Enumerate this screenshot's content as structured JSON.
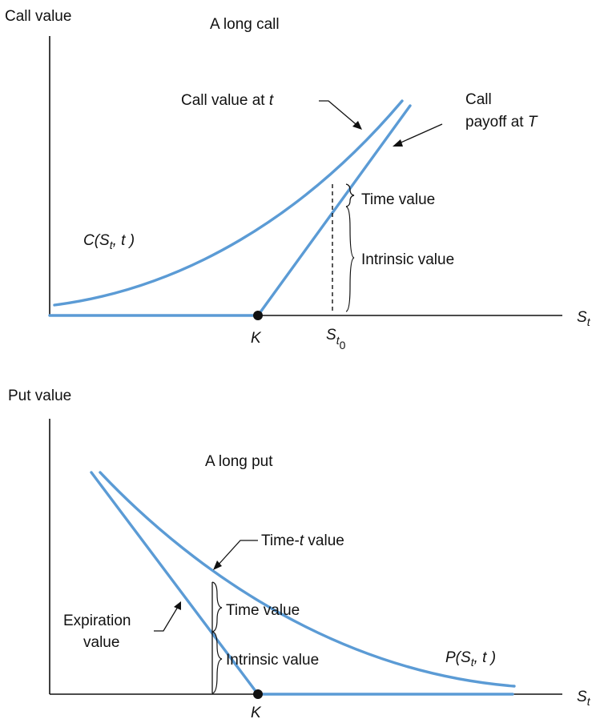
{
  "call_panel": {
    "y_axis_label": "Call value",
    "title": "A long call",
    "x_axis_label": "S",
    "x_axis_sub": "t",
    "strike_label": "K",
    "spot_label": "S",
    "spot_sub": "t",
    "spot_subsub": "0",
    "value_function_label": "C(S",
    "value_function_sub": "t",
    "value_function_tail": ", t )",
    "call_value_at_t_label": "Call value  at ",
    "call_value_at_t_var": "t",
    "payoff_label_line1": "Call",
    "payoff_label_line2": "payoff at ",
    "payoff_label_var": "T",
    "time_value_label": "Time value",
    "intrinsic_value_label": "Intrinsic value"
  },
  "put_panel": {
    "y_axis_label": "Put value",
    "title": "A long put",
    "x_axis_label": "S",
    "x_axis_sub": "t",
    "strike_label": "K",
    "time_t_label_pre": "Time-",
    "time_t_label_var": "t",
    "time_t_label_post": " value",
    "expiration_label_line1": "Expiration",
    "expiration_label_line2": "value",
    "time_value_label": "Time value",
    "intrinsic_value_label": "Intrinsic value",
    "value_function_label": "P(S",
    "value_function_sub": "t",
    "value_function_tail": ", t )"
  },
  "colors": {
    "curve": "#5b9bd5",
    "axis": "#111111",
    "text": "#111111"
  }
}
